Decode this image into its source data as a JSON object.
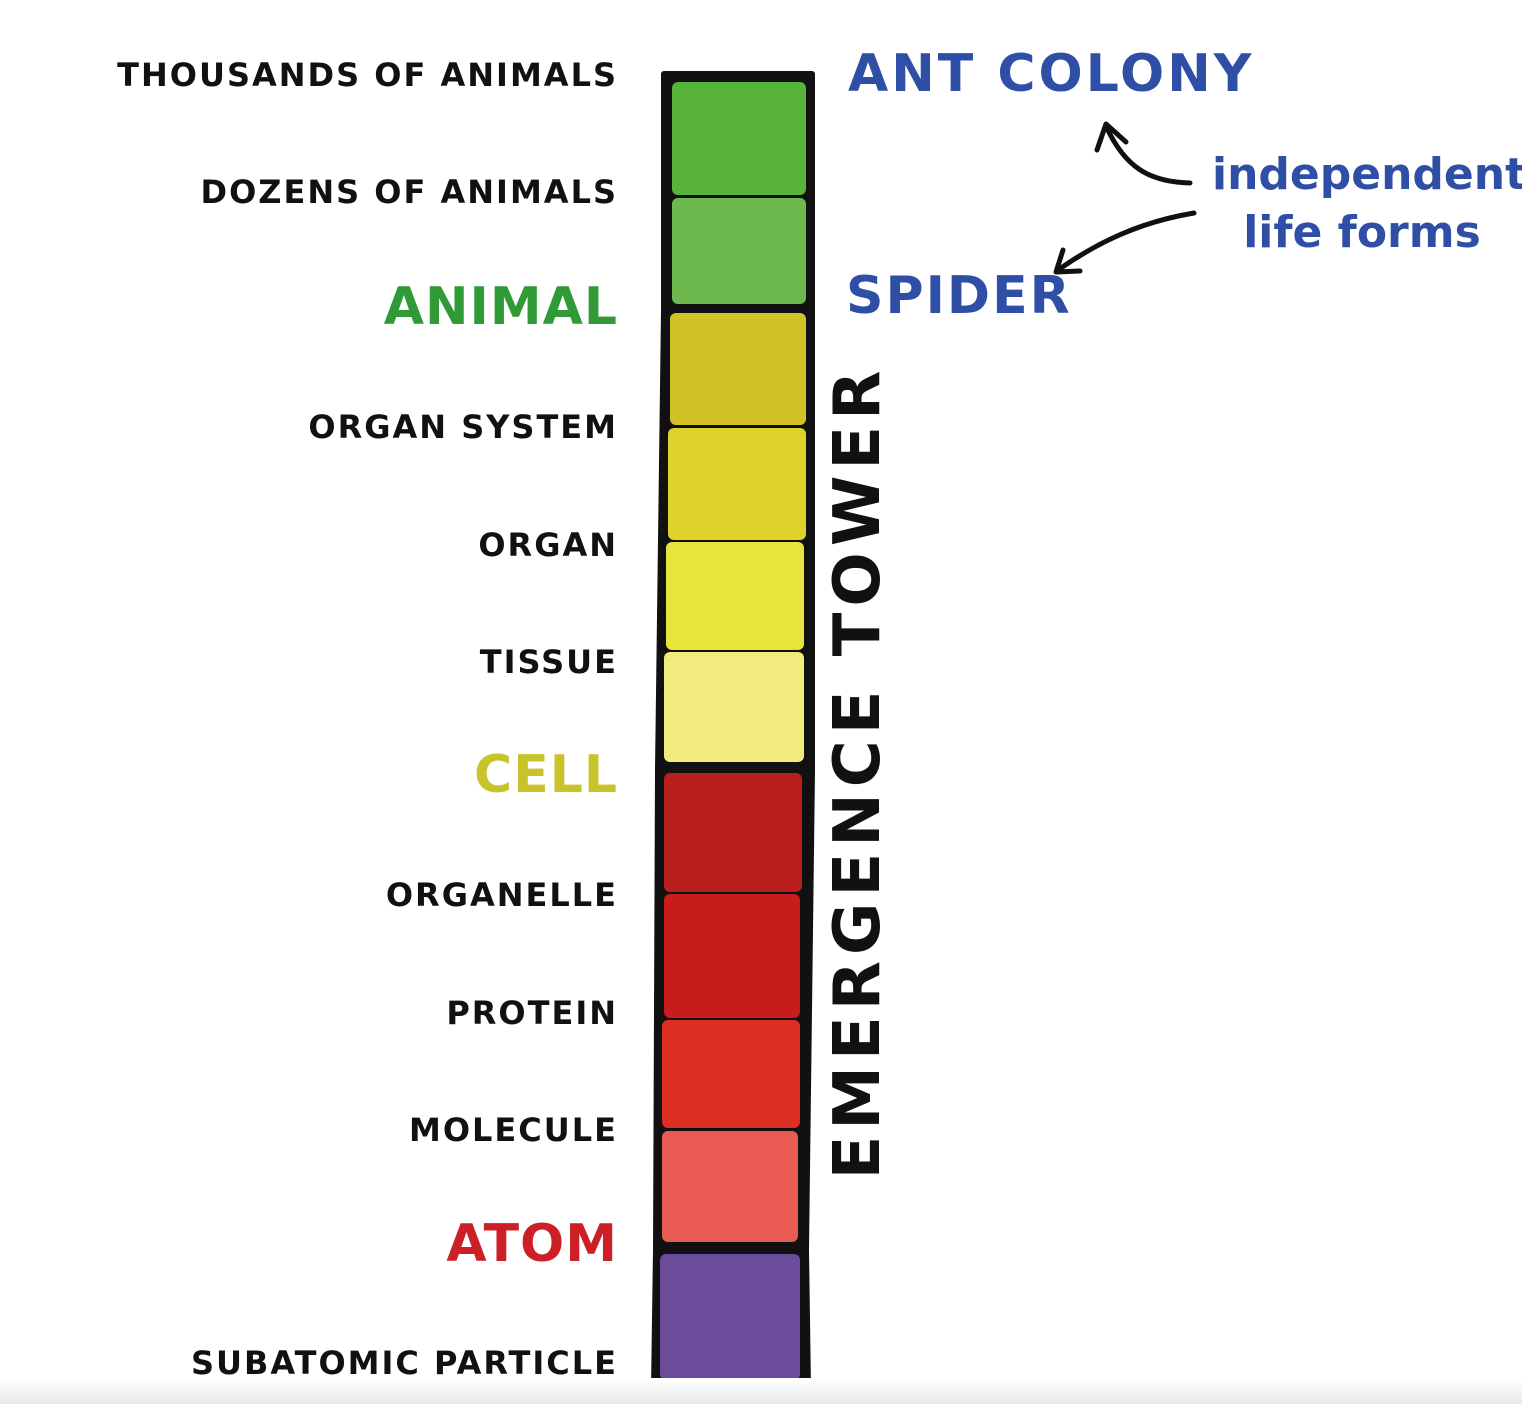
{
  "tower": {
    "title": "EMERGENCE TOWER",
    "outline_color": "#111111",
    "levels": [
      {
        "label": "THOUSANDS OF ANIMALS",
        "color": "#57b33a",
        "emphasis": false
      },
      {
        "label": "DOZENS OF ANIMALS",
        "color": "#6db94e",
        "emphasis": false
      },
      {
        "label": "ANIMAL",
        "color": "#d3c227",
        "emphasis": true,
        "label_color": "#2f9a36"
      },
      {
        "label": "ORGAN SYSTEM",
        "color": "#dfd32b",
        "emphasis": false
      },
      {
        "label": "ORGAN",
        "color": "#e7e43d",
        "emphasis": false
      },
      {
        "label": "TISSUE",
        "color": "#f1ea7c",
        "emphasis": false
      },
      {
        "label": "CELL",
        "color": "#b81f1d",
        "emphasis": true,
        "label_color": "#c9c32a"
      },
      {
        "label": "ORGANELLE",
        "color": "#c81b1b",
        "emphasis": false
      },
      {
        "label": "PROTEIN",
        "color": "#dc2e22",
        "emphasis": false
      },
      {
        "label": "MOLECULE",
        "color": "#e85a52",
        "emphasis": false
      },
      {
        "label": "ATOM",
        "color": "#6b4c9a",
        "emphasis": true,
        "label_color": "#cc2026"
      },
      {
        "label": "SUBATOMIC PARTICLE",
        "color": "#6b4c9a",
        "emphasis": false
      }
    ]
  },
  "life_forms": {
    "top": "ANT COLONY",
    "middle": "SPIDER",
    "note_line1": "independent",
    "note_line2": "life forms",
    "color": "#2f4fa6"
  }
}
